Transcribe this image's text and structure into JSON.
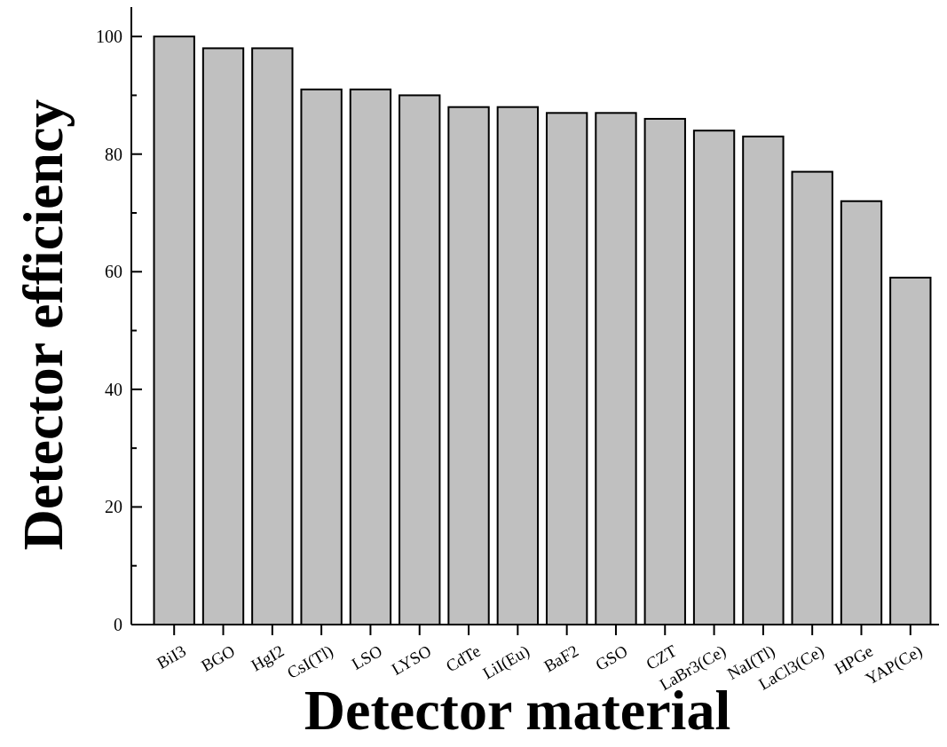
{
  "chart_data": {
    "type": "bar",
    "xlabel": "Detector material",
    "ylabel": "Detector efficiency",
    "categories": [
      "BiI3",
      "BGO",
      "HgI2",
      "CsI(Tl)",
      "LSO",
      "LYSO",
      "CdTe",
      "LiI(Eu)",
      "BaF2",
      "GSO",
      "CZT",
      "LaBr3(Ce)",
      "NaI(Tl)",
      "LaCl3(Ce)",
      "HPGe",
      "YAP(Ce)"
    ],
    "values": [
      100,
      98,
      98,
      91,
      91,
      90,
      88,
      88,
      87,
      87,
      86,
      84,
      83,
      77,
      72,
      59
    ],
    "color": "#c0c0c0",
    "ylim": [
      0,
      105
    ],
    "yticks": [
      0,
      {
        "value": 10,
        "label": null
      },
      20,
      {
        "value": 30,
        "label": null
      },
      40,
      {
        "value": 50,
        "label": null
      },
      60,
      {
        "value": 70,
        "label": null
      },
      80,
      {
        "value": 90,
        "label": null
      },
      100
    ],
    "grid": false
  }
}
